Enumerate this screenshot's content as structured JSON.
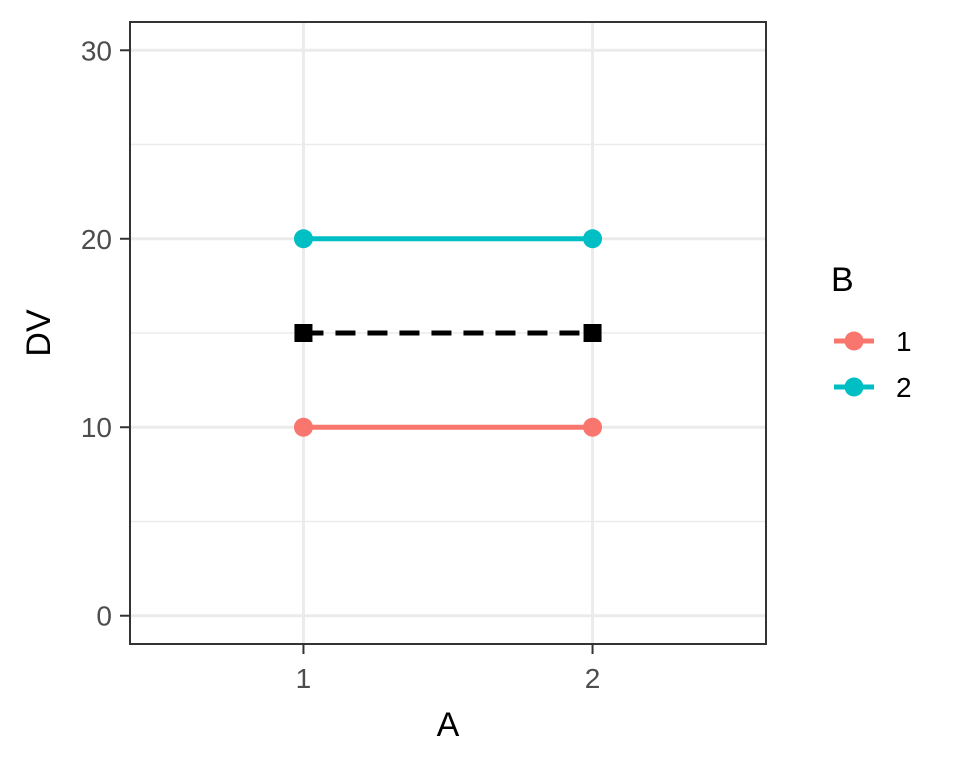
{
  "chart_data": {
    "type": "line",
    "title": "",
    "xlabel": "A",
    "ylabel": "DV",
    "x_categories": [
      "1",
      "2"
    ],
    "xlim": [
      0.4,
      2.6
    ],
    "ylim": [
      -1.5,
      31.5
    ],
    "y_major_ticks": [
      0,
      10,
      20,
      30
    ],
    "y_minor_ticks": [
      5,
      15,
      25
    ],
    "grid": true,
    "legend": {
      "title": "B",
      "placement": "right"
    },
    "series": [
      {
        "name": "1",
        "x": [
          1,
          2
        ],
        "y": [
          10,
          10
        ],
        "color": "#F8766D",
        "marker": "circle",
        "linestyle": "solid"
      },
      {
        "name": "2",
        "x": [
          1,
          2
        ],
        "y": [
          20,
          20
        ],
        "color": "#00BFC4",
        "marker": "circle",
        "linestyle": "solid"
      }
    ],
    "mean_line": {
      "x": [
        1,
        2
      ],
      "y": [
        15,
        15
      ],
      "color": "#000000",
      "marker": "square",
      "linestyle": "dashed"
    }
  }
}
